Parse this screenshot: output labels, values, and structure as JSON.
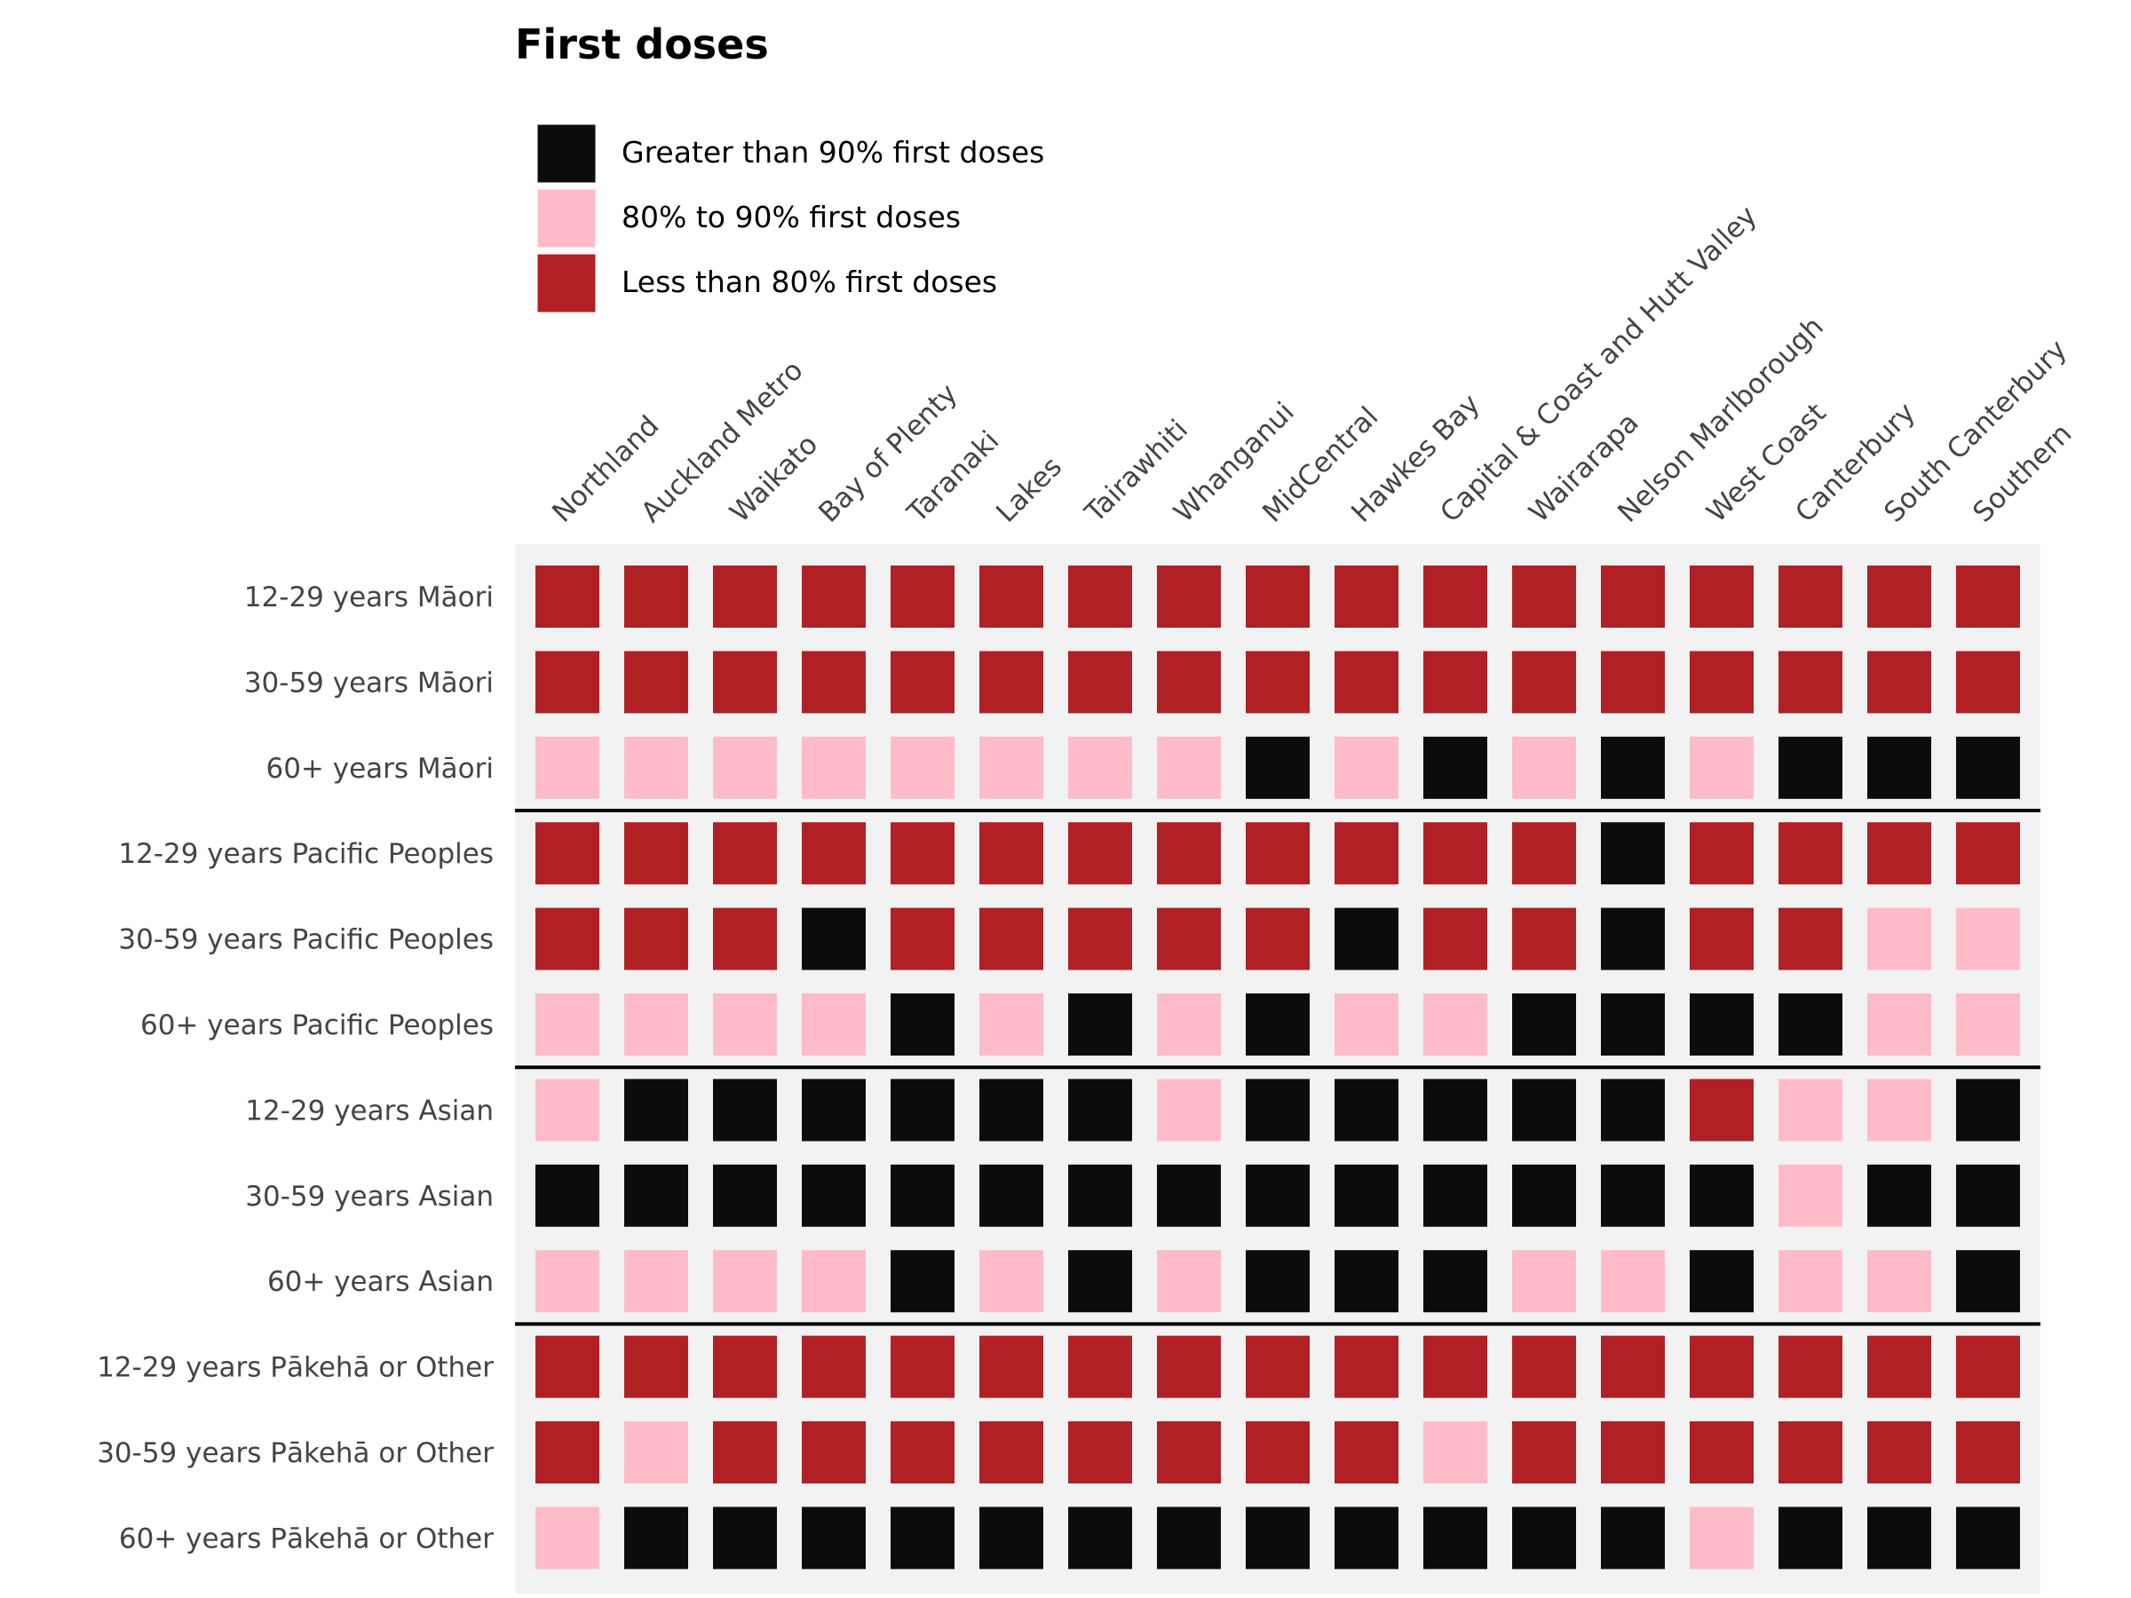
{
  "colors": {
    "high": "#0c0c0c",
    "mid": "#ffbcc8",
    "low": "#b02024",
    "panel": "#f2f2f2",
    "text": "#444444",
    "title": "#000000",
    "separator": "#000000"
  },
  "chart_data": {
    "type": "heatmap",
    "title": "First doses",
    "legend": {
      "position": "top-left",
      "entries": [
        {
          "key": "high",
          "label": "Greater than 90% first doses"
        },
        {
          "key": "mid",
          "label": "80% to 90% first doses"
        },
        {
          "key": "low",
          "label": "Less than 80% first doses"
        }
      ]
    },
    "columns": [
      "Northland",
      "Auckland Metro",
      "Waikato",
      "Bay of Plenty",
      "Taranaki",
      "Lakes",
      "Tairawhiti",
      "Whanganui",
      "MidCentral",
      "Hawkes Bay",
      "Capital & Coast and Hutt Valley",
      "Wairarapa",
      "Nelson Marlborough",
      "West Coast",
      "Canterbury",
      "South Canterbury",
      "Southern"
    ],
    "groups": [
      {
        "rows": [
          {
            "label": "12-29 years Māori",
            "values": [
              "low",
              "low",
              "low",
              "low",
              "low",
              "low",
              "low",
              "low",
              "low",
              "low",
              "low",
              "low",
              "low",
              "low",
              "low",
              "low",
              "low"
            ]
          },
          {
            "label": "30-59 years Māori",
            "values": [
              "low",
              "low",
              "low",
              "low",
              "low",
              "low",
              "low",
              "low",
              "low",
              "low",
              "low",
              "low",
              "low",
              "low",
              "low",
              "low",
              "low"
            ]
          },
          {
            "label": "60+ years Māori",
            "values": [
              "mid",
              "mid",
              "mid",
              "mid",
              "mid",
              "mid",
              "mid",
              "mid",
              "high",
              "mid",
              "high",
              "mid",
              "high",
              "mid",
              "high",
              "high",
              "high"
            ]
          }
        ]
      },
      {
        "rows": [
          {
            "label": "12-29 years Pacific Peoples",
            "values": [
              "low",
              "low",
              "low",
              "low",
              "low",
              "low",
              "low",
              "low",
              "low",
              "low",
              "low",
              "low",
              "high",
              "low",
              "low",
              "low",
              "low"
            ]
          },
          {
            "label": "30-59 years Pacific Peoples",
            "values": [
              "low",
              "low",
              "low",
              "high",
              "low",
              "low",
              "low",
              "low",
              "low",
              "high",
              "low",
              "low",
              "high",
              "low",
              "low",
              "mid",
              "mid"
            ]
          },
          {
            "label": "60+ years Pacific Peoples",
            "values": [
              "mid",
              "mid",
              "mid",
              "mid",
              "high",
              "mid",
              "high",
              "mid",
              "high",
              "mid",
              "mid",
              "high",
              "high",
              "high",
              "high",
              "mid",
              "mid"
            ]
          }
        ]
      },
      {
        "rows": [
          {
            "label": "12-29 years Asian",
            "values": [
              "mid",
              "high",
              "high",
              "high",
              "high",
              "high",
              "high",
              "mid",
              "high",
              "high",
              "high",
              "high",
              "high",
              "low",
              "mid",
              "mid",
              "high"
            ]
          },
          {
            "label": "30-59 years Asian",
            "values": [
              "high",
              "high",
              "high",
              "high",
              "high",
              "high",
              "high",
              "high",
              "high",
              "high",
              "high",
              "high",
              "high",
              "high",
              "mid",
              "high",
              "high"
            ]
          },
          {
            "label": "60+ years Asian",
            "values": [
              "mid",
              "mid",
              "mid",
              "mid",
              "high",
              "mid",
              "high",
              "mid",
              "high",
              "high",
              "high",
              "mid",
              "mid",
              "high",
              "mid",
              "mid",
              "high"
            ]
          }
        ]
      },
      {
        "rows": [
          {
            "label": "12-29 years Pākehā or Other",
            "values": [
              "low",
              "low",
              "low",
              "low",
              "low",
              "low",
              "low",
              "low",
              "low",
              "low",
              "low",
              "low",
              "low",
              "low",
              "low",
              "low",
              "low"
            ]
          },
          {
            "label": "30-59 years Pākehā or Other",
            "values": [
              "low",
              "mid",
              "low",
              "low",
              "low",
              "low",
              "low",
              "low",
              "low",
              "low",
              "mid",
              "low",
              "low",
              "low",
              "low",
              "low",
              "low"
            ]
          },
          {
            "label": "60+ years Pākehā or Other",
            "values": [
              "mid",
              "high",
              "high",
              "high",
              "high",
              "high",
              "high",
              "high",
              "high",
              "high",
              "high",
              "high",
              "high",
              "mid",
              "high",
              "high",
              "high"
            ]
          }
        ]
      }
    ]
  }
}
